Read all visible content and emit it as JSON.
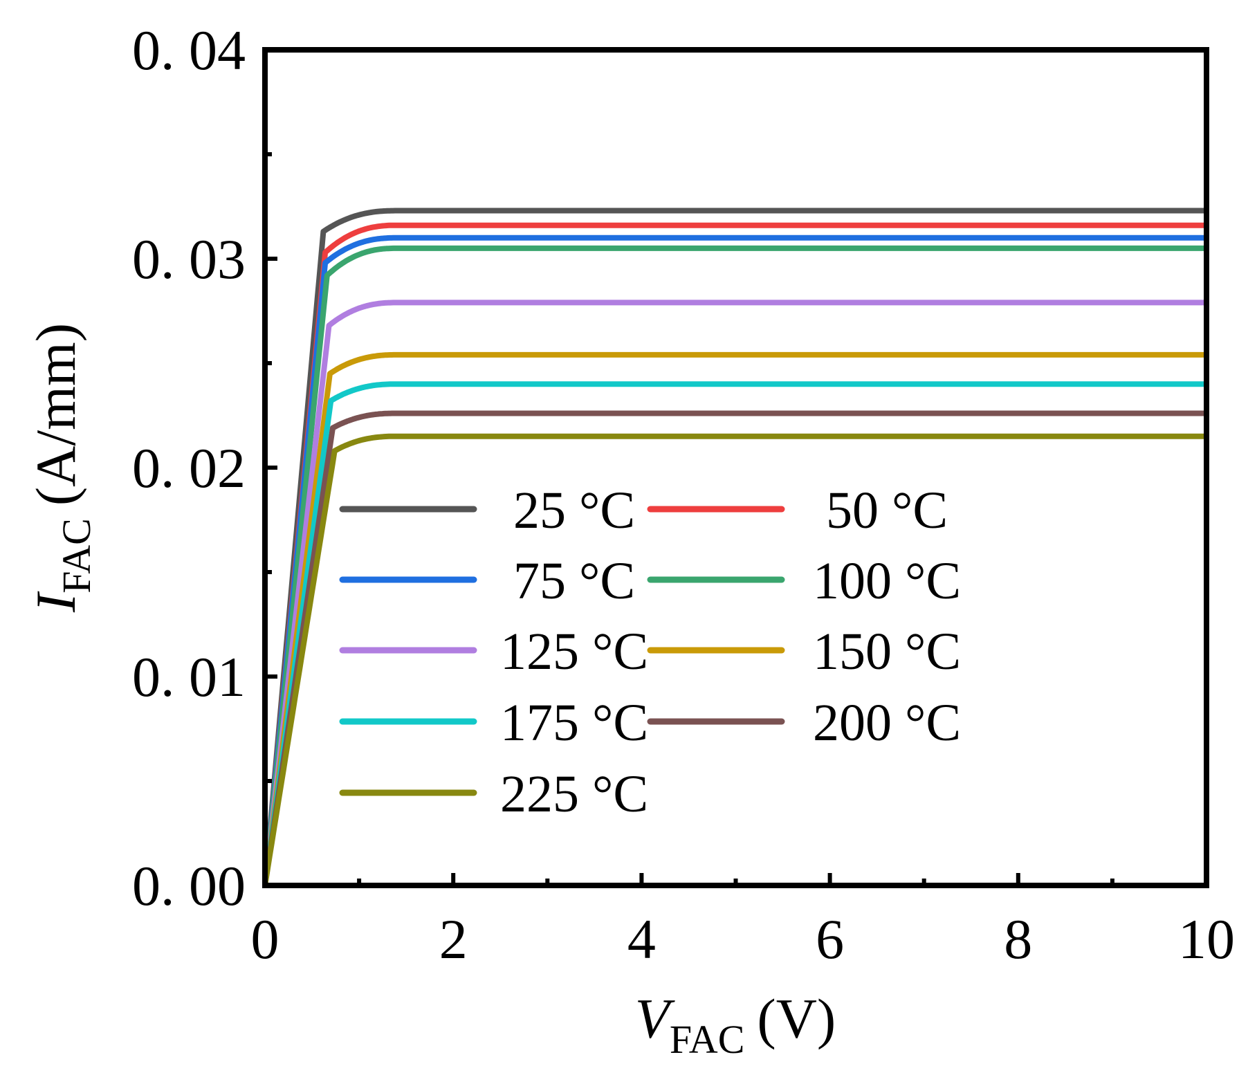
{
  "chart_data": {
    "type": "line",
    "title": "",
    "xlabel": {
      "var": "V",
      "sub": "FAC",
      "unit": "(V)"
    },
    "ylabel": {
      "var": "I",
      "sub": "FAC",
      "unit": "(A/mm)"
    },
    "xlim": [
      0,
      10
    ],
    "ylim": [
      0,
      0.04
    ],
    "xticks": [
      0,
      2,
      4,
      6,
      8,
      10
    ],
    "xtick_labels": [
      "0",
      "2",
      "4",
      "6",
      "8",
      "10"
    ],
    "yticks": [
      0,
      0.01,
      0.02,
      0.03,
      0.04
    ],
    "ytick_labels": [
      "0. 00",
      "0. 01",
      "0. 02",
      "0. 03",
      "0. 04"
    ],
    "grid": false,
    "legend_position": "lower-left inside, two columns",
    "series": [
      {
        "name": "25 °C",
        "color": "#555555",
        "knee_v": 0.62,
        "knee_i": 0.0313,
        "sat_i": 0.0323
      },
      {
        "name": "50 °C",
        "color": "#ee3e3e",
        "knee_v": 0.64,
        "knee_i": 0.0303,
        "sat_i": 0.0316
      },
      {
        "name": "75 °C",
        "color": "#1f6fe0",
        "knee_v": 0.64,
        "knee_i": 0.0298,
        "sat_i": 0.031
      },
      {
        "name": "100 °C",
        "color": "#3aa56e",
        "knee_v": 0.66,
        "knee_i": 0.0292,
        "sat_i": 0.0305
      },
      {
        "name": "125 °C",
        "color": "#b07ee0",
        "knee_v": 0.68,
        "knee_i": 0.0268,
        "sat_i": 0.0279
      },
      {
        "name": "150 °C",
        "color": "#c99a08",
        "knee_v": 0.69,
        "knee_i": 0.0245,
        "sat_i": 0.0254
      },
      {
        "name": "175 °C",
        "color": "#12c8c8",
        "knee_v": 0.7,
        "knee_i": 0.0232,
        "sat_i": 0.024
      },
      {
        "name": "200 °C",
        "color": "#7a5252",
        "knee_v": 0.72,
        "knee_i": 0.0219,
        "sat_i": 0.0226
      },
      {
        "name": "225 °C",
        "color": "#888810",
        "knee_v": 0.74,
        "knee_i": 0.0208,
        "sat_i": 0.0215
      }
    ]
  }
}
